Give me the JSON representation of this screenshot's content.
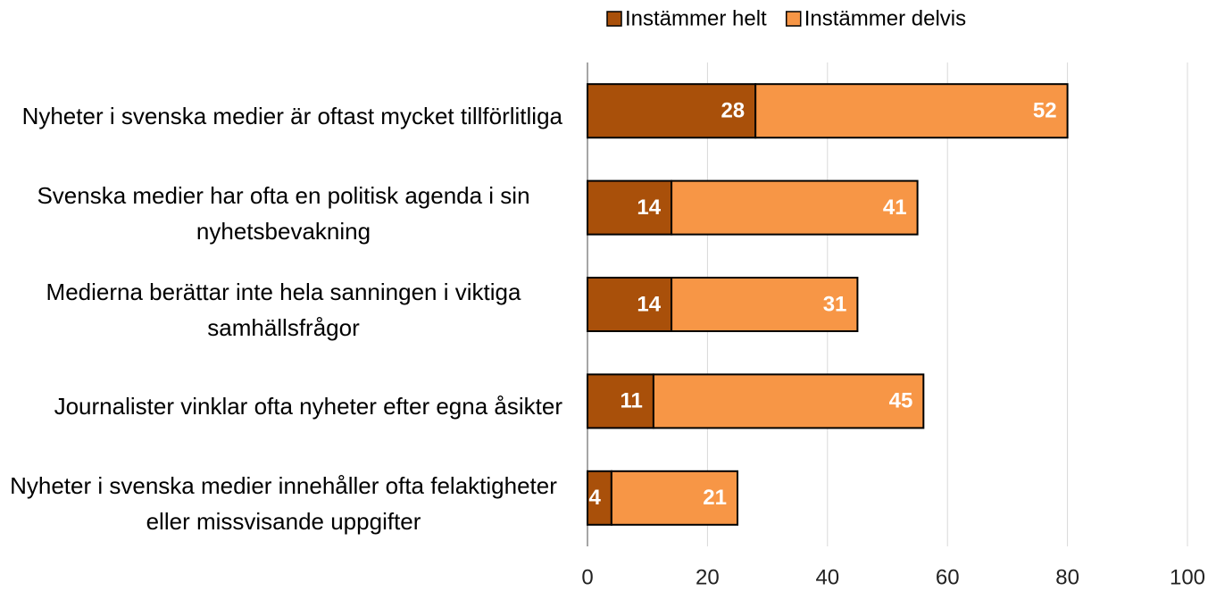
{
  "chart_data": {
    "type": "stacked_bar_horizontal",
    "categories": [
      "Nyheter i svenska medier är oftast mycket tillförlitliga",
      "Svenska medier har ofta en politisk agenda i sin nyhetsbevakning",
      "Medierna berättar inte hela sanningen i viktiga samhällsfrågor",
      "Journalister vinklar ofta nyheter efter egna åsikter",
      "Nyheter i svenska medier innehåller ofta felaktigheter eller missvisande uppgifter"
    ],
    "series": [
      {
        "name": "Instämmer helt",
        "color": "#a9500a",
        "values": [
          28,
          14,
          14,
          11,
          4
        ]
      },
      {
        "name": "Instämmer delvis",
        "color": "#f79646",
        "values": [
          52,
          41,
          31,
          45,
          21
        ]
      }
    ],
    "xlim": [
      0,
      100
    ],
    "xticks": [
      0,
      20,
      40,
      60,
      80,
      100
    ],
    "grid": true,
    "legend": "top"
  }
}
